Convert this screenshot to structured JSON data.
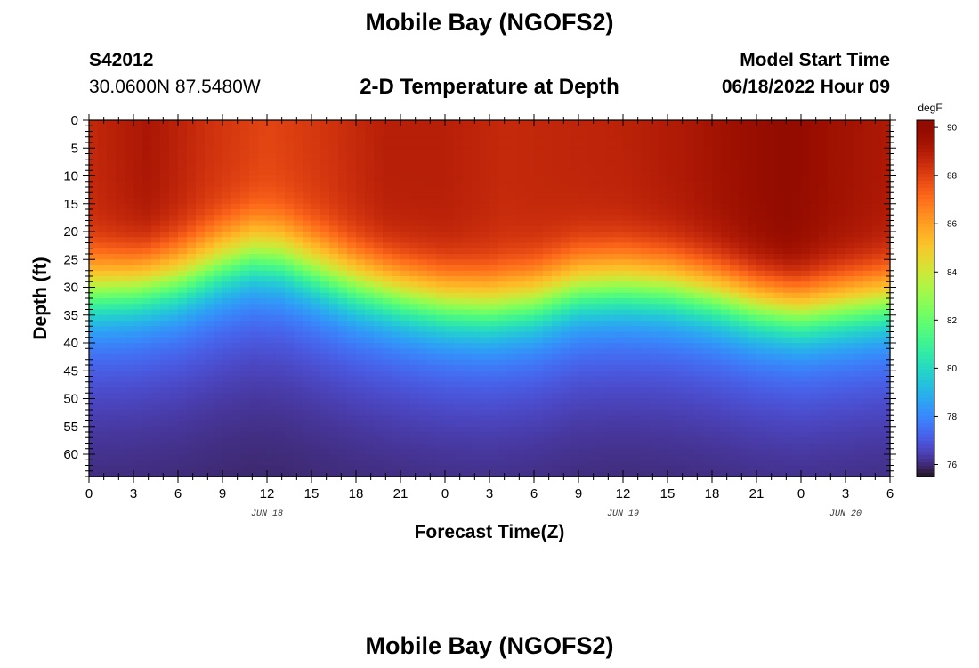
{
  "page": {
    "title": "Mobile Bay (NGOFS2)",
    "station_id": "S42012",
    "coordinates": "30.0600N  87.5480W",
    "subtitle": "2-D Temperature at Depth",
    "model_start_label": "Model Start Time",
    "model_start_value": "06/18/2022 Hour 09",
    "footer_title": "Mobile Bay (NGOFS2)"
  },
  "chart_data": {
    "type": "heatmap",
    "title": "2-D Temperature at Depth",
    "xlabel": "Forecast Time(Z)",
    "ylabel": "Depth (ft)",
    "x_range_hours": [
      0,
      54
    ],
    "x_ticks": [
      {
        "label": "0",
        "hour": 0
      },
      {
        "label": "3",
        "hour": 3
      },
      {
        "label": "6",
        "hour": 6
      },
      {
        "label": "9",
        "hour": 9
      },
      {
        "label": "12",
        "hour": 12
      },
      {
        "label": "15",
        "hour": 15
      },
      {
        "label": "18",
        "hour": 18
      },
      {
        "label": "21",
        "hour": 21
      },
      {
        "label": "0",
        "hour": 24
      },
      {
        "label": "3",
        "hour": 27
      },
      {
        "label": "6",
        "hour": 30
      },
      {
        "label": "9",
        "hour": 33
      },
      {
        "label": "12",
        "hour": 36
      },
      {
        "label": "15",
        "hour": 39
      },
      {
        "label": "18",
        "hour": 42
      },
      {
        "label": "21",
        "hour": 45
      },
      {
        "label": "0",
        "hour": 48
      },
      {
        "label": "3",
        "hour": 51
      },
      {
        "label": "6",
        "hour": 54
      }
    ],
    "date_labels": [
      {
        "label": "JUN 18",
        "hour": 12
      },
      {
        "label": "JUN 19",
        "hour": 36
      },
      {
        "label": "JUN 20",
        "hour": 51
      }
    ],
    "y_range": [
      0,
      64
    ],
    "y_ticks": [
      0,
      5,
      10,
      15,
      20,
      25,
      30,
      35,
      40,
      45,
      50,
      55,
      60
    ],
    "y_inverted": true,
    "colorbar": {
      "unit": "degF",
      "min": 75.5,
      "max": 90.3,
      "ticks": [
        90,
        88,
        86,
        84,
        82,
        80,
        78,
        76
      ],
      "colormap": "turbo"
    },
    "thermocline_depth_ft": [
      [
        0,
        29
      ],
      [
        3,
        28.5
      ],
      [
        6,
        27
      ],
      [
        9,
        24
      ],
      [
        11,
        22.5
      ],
      [
        13,
        23
      ],
      [
        15,
        25
      ],
      [
        18,
        28
      ],
      [
        21,
        30
      ],
      [
        24,
        31.5
      ],
      [
        27,
        32
      ],
      [
        30,
        31
      ],
      [
        33,
        28.5
      ],
      [
        36,
        28
      ],
      [
        39,
        28.5
      ],
      [
        42,
        30
      ],
      [
        45,
        32
      ],
      [
        48,
        33
      ],
      [
        51,
        32
      ],
      [
        54,
        31
      ]
    ],
    "surface_temp_degF": [
      [
        0,
        88.6
      ],
      [
        4,
        89.2
      ],
      [
        8,
        88.4
      ],
      [
        12,
        87.9
      ],
      [
        16,
        88.3
      ],
      [
        20,
        88.9
      ],
      [
        24,
        88.9
      ],
      [
        28,
        88.6
      ],
      [
        32,
        88.7
      ],
      [
        36,
        88.8
      ],
      [
        40,
        89.1
      ],
      [
        44,
        89.6
      ],
      [
        47,
        90.0
      ],
      [
        50,
        89.5
      ],
      [
        54,
        89.1
      ]
    ],
    "bottom_temp_degF": 75.8
  }
}
